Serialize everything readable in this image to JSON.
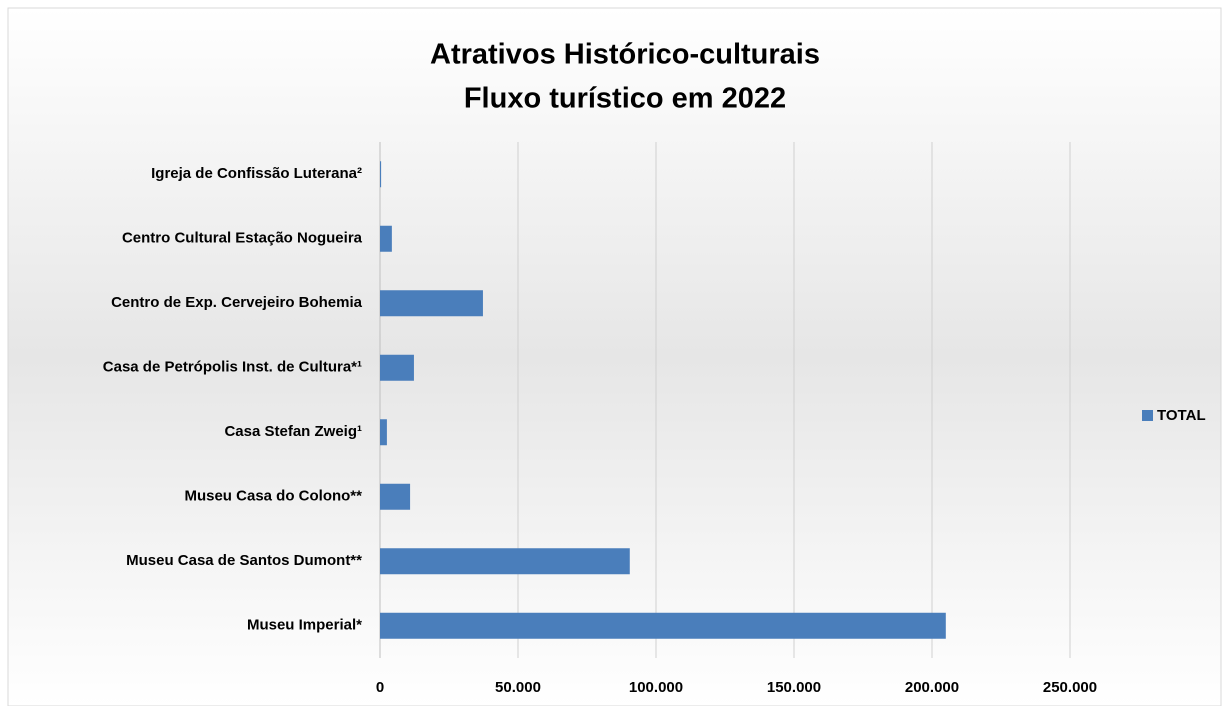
{
  "chart_data": {
    "type": "bar",
    "orientation": "horizontal",
    "title": "Atrativos Histórico-culturais",
    "subtitle": "Fluxo turístico em 2022",
    "categories": [
      "Museu Imperial*",
      "Museu Casa de Santos Dumont**",
      "Museu Casa do Colono**",
      "Casa Stefan Zweig¹",
      "Casa de Petrópolis Inst. de Cultura*¹",
      "Centro de Exp. Cervejeiro Bohemia",
      "Centro Cultural Estação Nogueira",
      "Igreja de Confissão Luterana²"
    ],
    "series": [
      {
        "name": "TOTAL",
        "color": "#4a7ebb",
        "values": [
          205000,
          90500,
          10900,
          2500,
          12300,
          37300,
          4300,
          400
        ]
      }
    ],
    "xlim": [
      0,
      250000
    ],
    "xticks": [
      0,
      {
        "value": 50000,
        "label": "50.000"
      },
      {
        "value": 100000,
        "label": "100.000"
      },
      {
        "value": 150000,
        "label": "150.000"
      },
      {
        "value": 200000,
        "label": "200.000"
      },
      {
        "value": 250000,
        "label": "250.000"
      }
    ],
    "grid": true,
    "legend": "right"
  }
}
